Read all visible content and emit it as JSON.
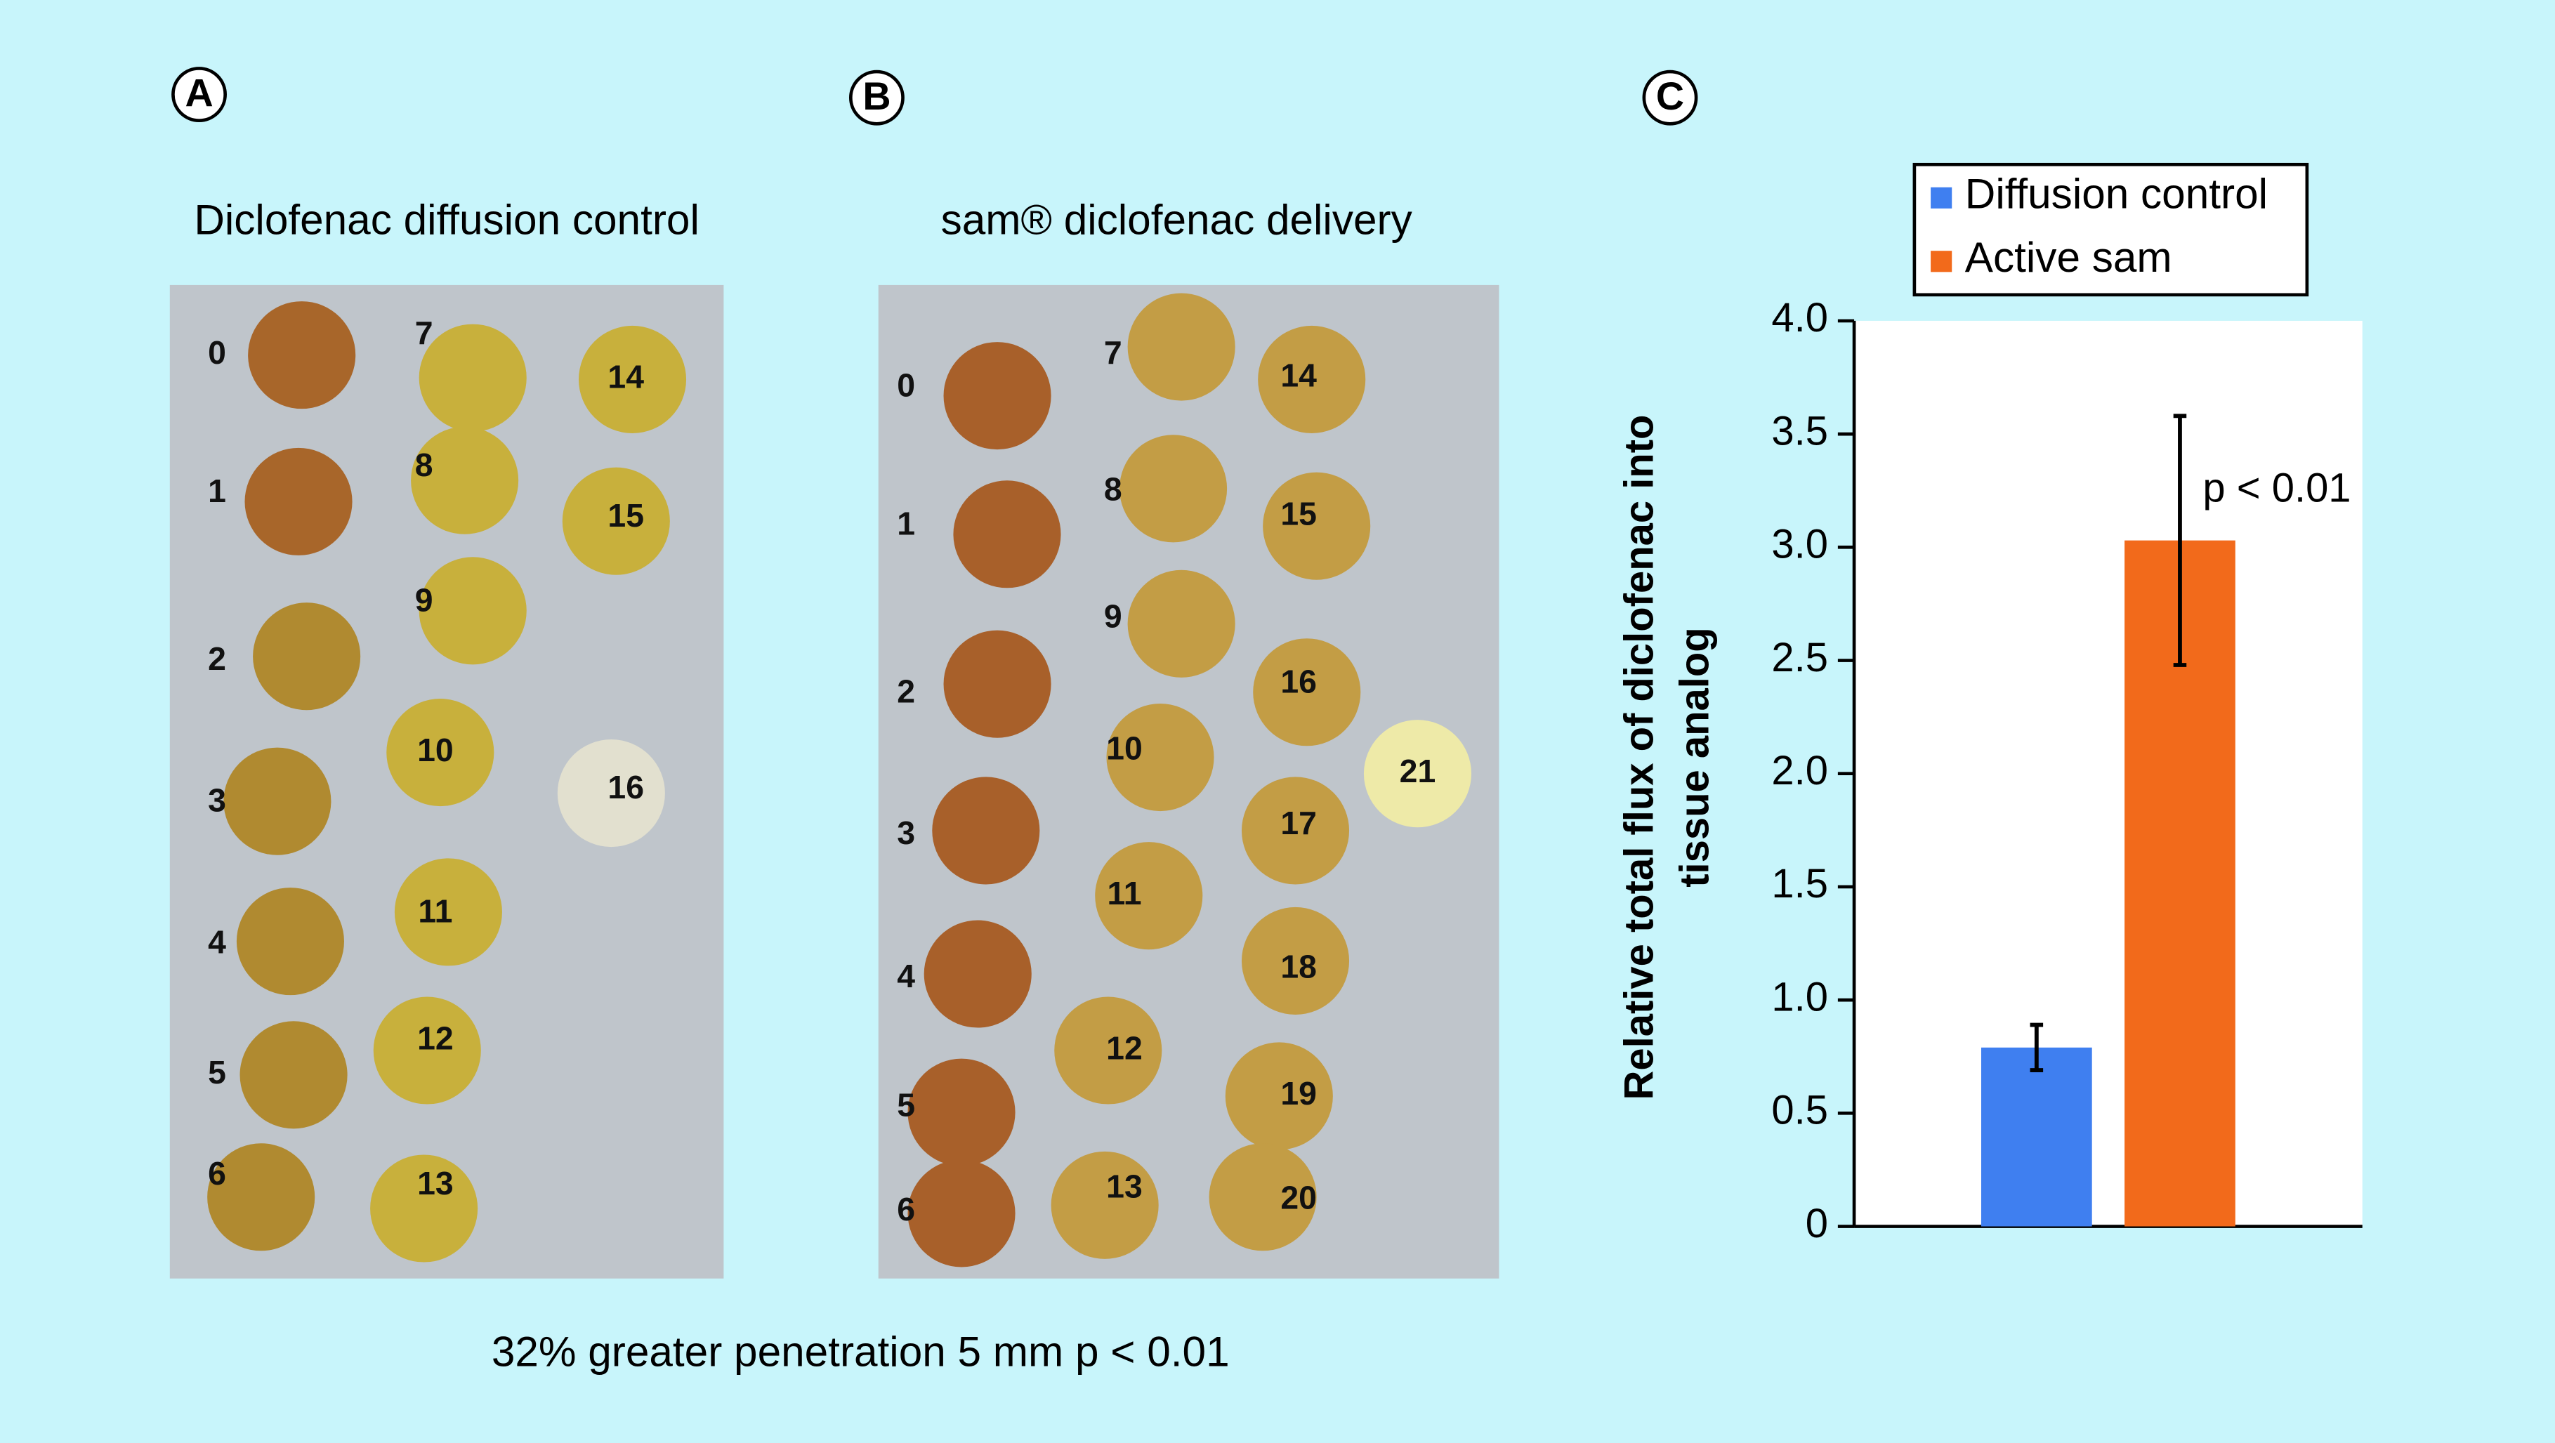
{
  "panel_a": {
    "letter": "A",
    "title": "Diclofenac diffusion control",
    "labels": [
      "0",
      "1",
      "2",
      "3",
      "4",
      "5",
      "6",
      "7",
      "8",
      "9",
      "10",
      "11",
      "12",
      "13",
      "14",
      "15",
      "16"
    ]
  },
  "panel_b": {
    "letter": "B",
    "title": "sam® diclofenac delivery",
    "labels": [
      "0",
      "1",
      "2",
      "3",
      "4",
      "5",
      "6",
      "7",
      "8",
      "9",
      "10",
      "11",
      "12",
      "13",
      "14",
      "15",
      "16",
      "17",
      "18",
      "19",
      "20",
      "21"
    ]
  },
  "caption": "32% greater penetration 5 mm p < 0.01",
  "chart_data": {
    "type": "bar",
    "letter": "C",
    "ylabel": [
      "Relative total flux of diclofenac into",
      "tissue analog"
    ],
    "categories": [
      null
    ],
    "series": [
      {
        "name": "Diffusion control",
        "color": "#3f7ff0",
        "values": [
          0.79
        ],
        "errors": [
          0.1
        ]
      },
      {
        "name": "Active sam",
        "color": "#f26a1b",
        "values": [
          3.03
        ],
        "errors": [
          0.55
        ]
      }
    ],
    "annotation": "p < 0.01",
    "ylim": [
      0,
      4
    ],
    "yticks": [
      0,
      0.5,
      {
        "value": 1,
        "label": "1.0"
      },
      1.5,
      {
        "value": 2,
        "label": "2.0"
      },
      2.5,
      {
        "value": 3,
        "label": "3.0"
      },
      3.5,
      {
        "value": 4,
        "label": "4.0"
      }
    ],
    "legend": "top"
  }
}
